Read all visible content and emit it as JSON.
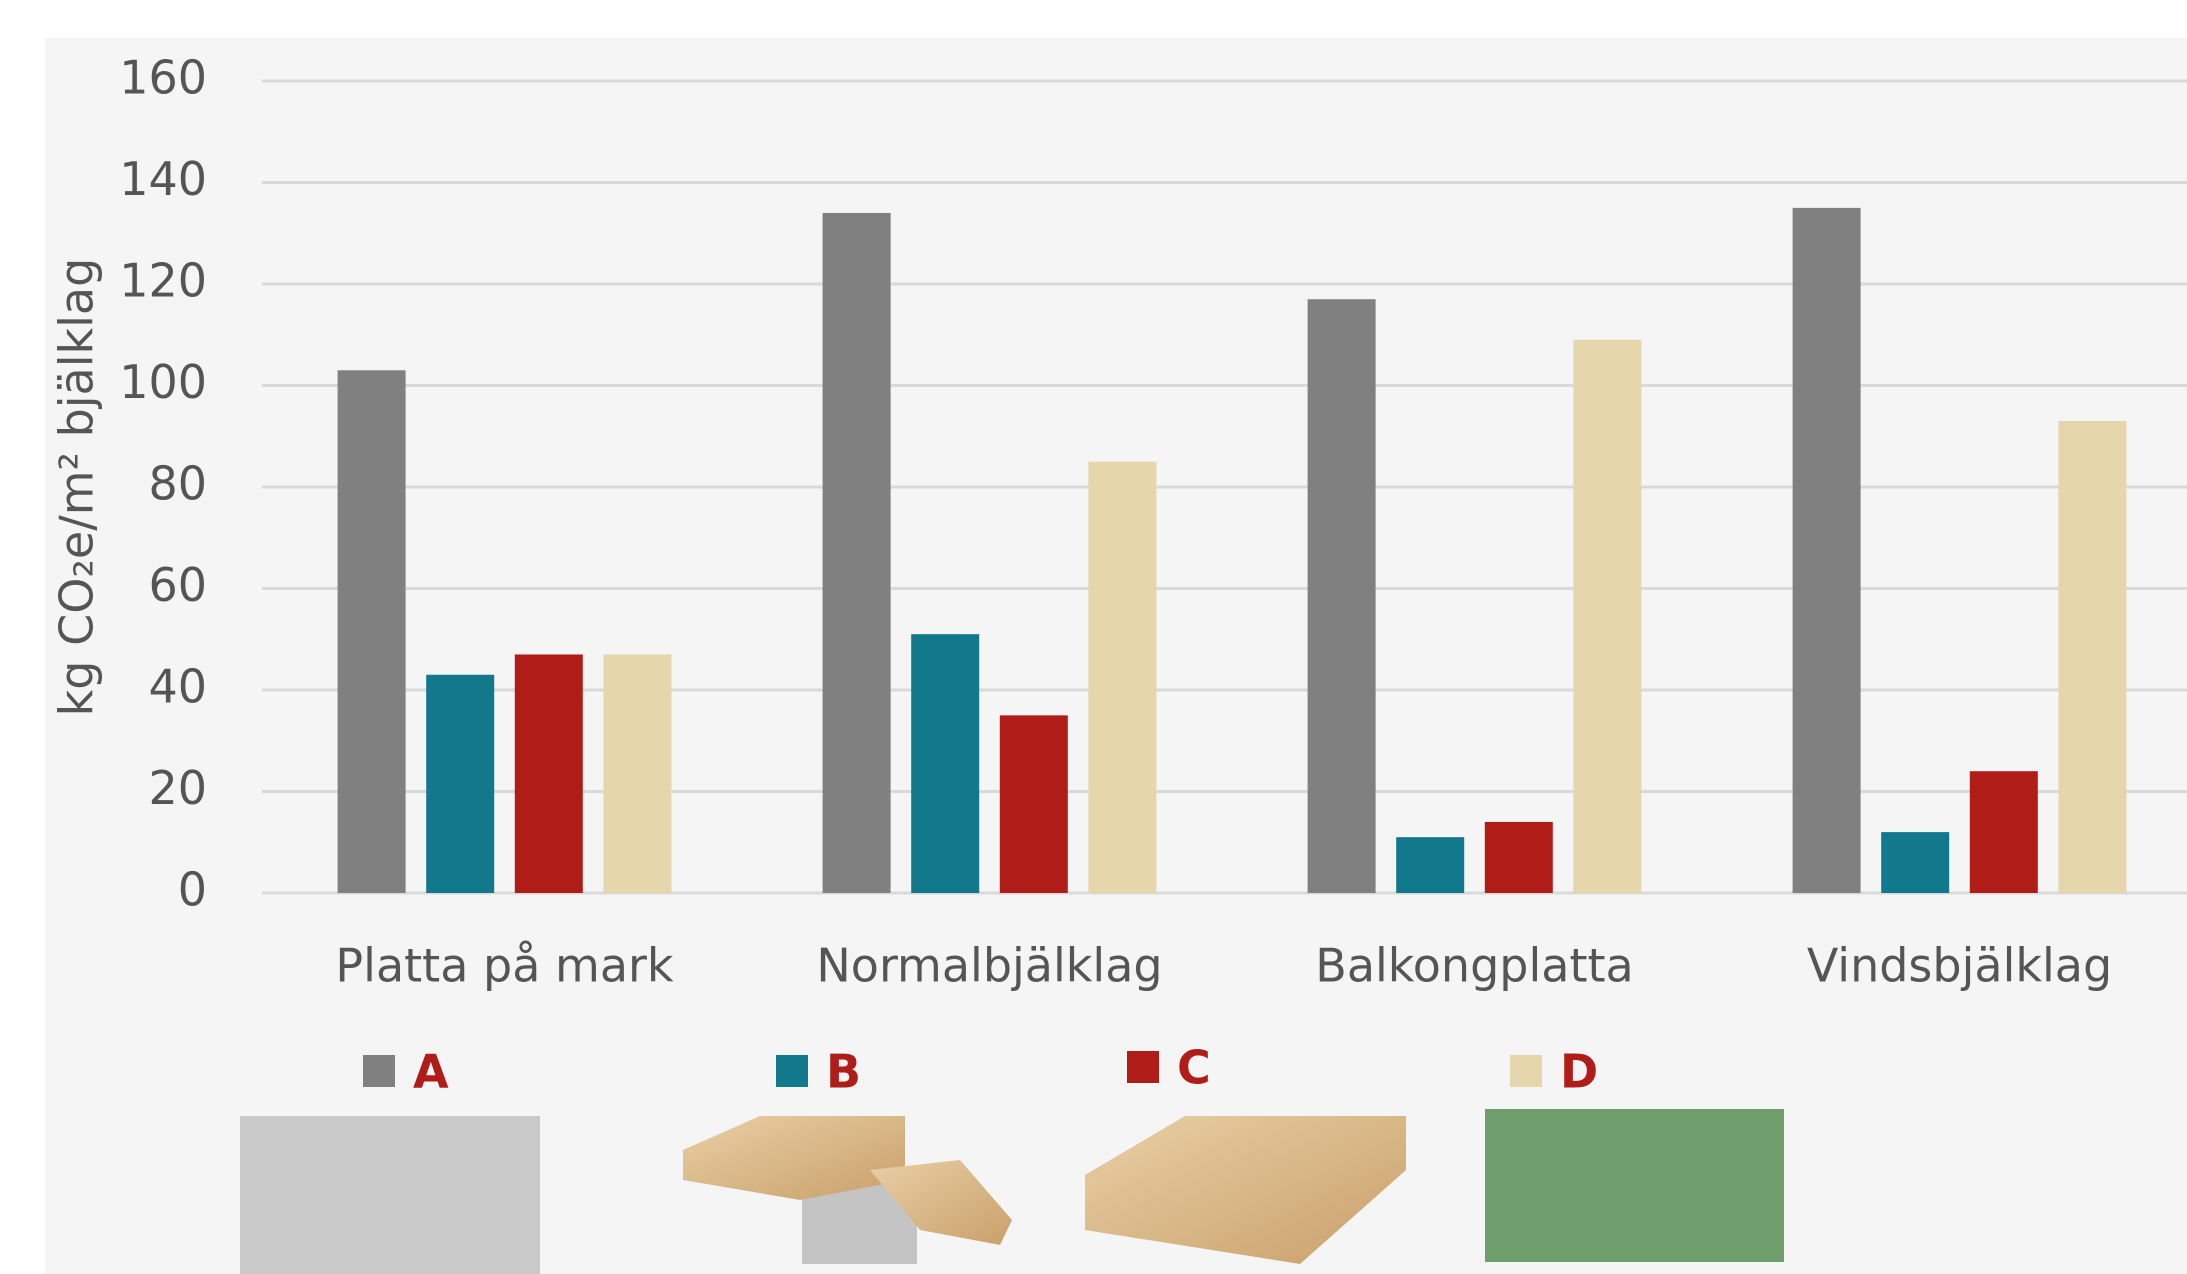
{
  "chart_data": {
    "type": "bar",
    "y_label": "kg CO₂e/m² bjälklag",
    "categories": [
      "Platta på mark",
      "Normalbjälklag",
      "Balkongplatta",
      "Vindsbjälklag"
    ],
    "series": [
      {
        "name": "A",
        "color": "#808080",
        "values": [
          103,
          134,
          117,
          135
        ]
      },
      {
        "name": "B",
        "color": "#12788c",
        "values": [
          43,
          51,
          11,
          12
        ]
      },
      {
        "name": "C",
        "color": "#b01c18",
        "values": [
          47,
          35,
          14,
          24
        ]
      },
      {
        "name": "D",
        "color": "#e5d6ab",
        "values": [
          47,
          85,
          109,
          93
        ]
      }
    ],
    "ylim": [
      0,
      160
    ],
    "yticks": [
      0,
      20,
      40,
      60,
      80,
      100,
      120,
      140,
      160
    ],
    "grid": true
  }
}
